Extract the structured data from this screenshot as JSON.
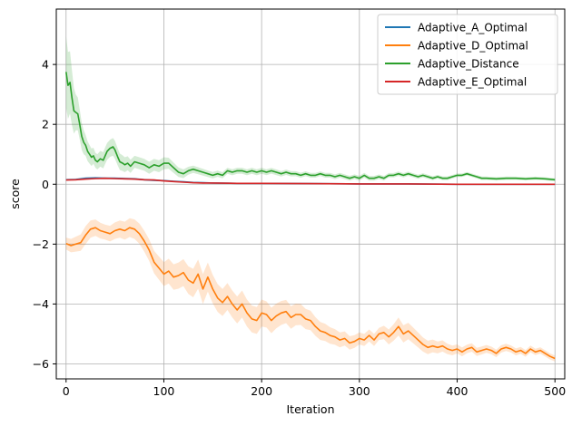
{
  "chart_data": {
    "type": "line",
    "xlabel": "Iteration",
    "ylabel": "score",
    "xlim": [
      -10,
      510
    ],
    "ylim": [
      -6.5,
      5.85
    ],
    "xticks": [
      0,
      100,
      200,
      300,
      400,
      500
    ],
    "yticks": [
      -6,
      -4,
      -2,
      0,
      2,
      4
    ],
    "grid": true,
    "legend_position": "top-right",
    "shaded_band": "variance band around each series mean",
    "series": [
      {
        "name": "Adaptive_A_Optimal",
        "color": "#1f77b4",
        "points": [
          [
            0,
            0.15
          ],
          [
            10,
            0.16
          ],
          [
            20,
            0.2
          ],
          [
            30,
            0.21
          ],
          [
            40,
            0.2
          ],
          [
            50,
            0.2
          ],
          [
            60,
            0.19
          ],
          [
            70,
            0.18
          ],
          [
            80,
            0.15
          ],
          [
            90,
            0.13
          ],
          [
            100,
            0.12
          ],
          [
            110,
            0.1
          ],
          [
            120,
            0.08
          ],
          [
            130,
            0.06
          ],
          [
            140,
            0.05
          ],
          [
            150,
            0.04
          ],
          [
            175,
            0.03
          ],
          [
            200,
            0.03
          ],
          [
            250,
            0.02
          ],
          [
            300,
            0.01
          ],
          [
            350,
            0.01
          ],
          [
            400,
            0.0
          ],
          [
            450,
            0.0
          ],
          [
            500,
            0.0
          ]
        ],
        "band": [
          [
            0,
            0.03
          ],
          [
            20,
            0.04
          ],
          [
            60,
            0.04
          ],
          [
            100,
            0.03
          ],
          [
            150,
            0.02
          ],
          [
            200,
            0.02
          ],
          [
            300,
            0.01
          ],
          [
            500,
            0.01
          ]
        ]
      },
      {
        "name": "Adaptive_D_Optimal",
        "color": "#ff7f0e",
        "points": [
          [
            0,
            -1.98
          ],
          [
            5,
            -2.05
          ],
          [
            10,
            -2.0
          ],
          [
            15,
            -1.95
          ],
          [
            20,
            -1.7
          ],
          [
            25,
            -1.5
          ],
          [
            30,
            -1.45
          ],
          [
            35,
            -1.55
          ],
          [
            40,
            -1.6
          ],
          [
            45,
            -1.65
          ],
          [
            50,
            -1.55
          ],
          [
            55,
            -1.5
          ],
          [
            60,
            -1.55
          ],
          [
            65,
            -1.45
          ],
          [
            70,
            -1.5
          ],
          [
            75,
            -1.65
          ],
          [
            80,
            -1.9
          ],
          [
            85,
            -2.2
          ],
          [
            90,
            -2.6
          ],
          [
            95,
            -2.8
          ],
          [
            100,
            -3.0
          ],
          [
            105,
            -2.9
          ],
          [
            110,
            -3.1
          ],
          [
            115,
            -3.05
          ],
          [
            120,
            -2.95
          ],
          [
            125,
            -3.2
          ],
          [
            130,
            -3.3
          ],
          [
            135,
            -3.0
          ],
          [
            140,
            -3.5
          ],
          [
            145,
            -3.1
          ],
          [
            150,
            -3.5
          ],
          [
            155,
            -3.8
          ],
          [
            160,
            -3.95
          ],
          [
            165,
            -3.75
          ],
          [
            170,
            -4.0
          ],
          [
            175,
            -4.2
          ],
          [
            180,
            -4.0
          ],
          [
            185,
            -4.3
          ],
          [
            190,
            -4.5
          ],
          [
            195,
            -4.55
          ],
          [
            200,
            -4.3
          ],
          [
            205,
            -4.35
          ],
          [
            210,
            -4.55
          ],
          [
            215,
            -4.4
          ],
          [
            220,
            -4.3
          ],
          [
            225,
            -4.25
          ],
          [
            230,
            -4.45
          ],
          [
            235,
            -4.35
          ],
          [
            240,
            -4.35
          ],
          [
            245,
            -4.5
          ],
          [
            250,
            -4.55
          ],
          [
            255,
            -4.75
          ],
          [
            260,
            -4.9
          ],
          [
            265,
            -4.95
          ],
          [
            270,
            -5.05
          ],
          [
            275,
            -5.1
          ],
          [
            280,
            -5.2
          ],
          [
            285,
            -5.15
          ],
          [
            290,
            -5.3
          ],
          [
            295,
            -5.25
          ],
          [
            300,
            -5.15
          ],
          [
            305,
            -5.2
          ],
          [
            310,
            -5.05
          ],
          [
            315,
            -5.2
          ],
          [
            320,
            -5.0
          ],
          [
            325,
            -4.95
          ],
          [
            330,
            -5.1
          ],
          [
            335,
            -4.95
          ],
          [
            340,
            -4.75
          ],
          [
            345,
            -5.0
          ],
          [
            350,
            -4.9
          ],
          [
            355,
            -5.05
          ],
          [
            360,
            -5.2
          ],
          [
            365,
            -5.35
          ],
          [
            370,
            -5.45
          ],
          [
            375,
            -5.4
          ],
          [
            380,
            -5.45
          ],
          [
            385,
            -5.4
          ],
          [
            390,
            -5.5
          ],
          [
            395,
            -5.55
          ],
          [
            400,
            -5.5
          ],
          [
            405,
            -5.6
          ],
          [
            410,
            -5.5
          ],
          [
            415,
            -5.45
          ],
          [
            420,
            -5.6
          ],
          [
            425,
            -5.55
          ],
          [
            430,
            -5.5
          ],
          [
            435,
            -5.55
          ],
          [
            440,
            -5.65
          ],
          [
            445,
            -5.5
          ],
          [
            450,
            -5.45
          ],
          [
            455,
            -5.5
          ],
          [
            460,
            -5.6
          ],
          [
            465,
            -5.55
          ],
          [
            470,
            -5.65
          ],
          [
            475,
            -5.5
          ],
          [
            480,
            -5.6
          ],
          [
            485,
            -5.55
          ],
          [
            490,
            -5.65
          ],
          [
            495,
            -5.75
          ],
          [
            500,
            -5.82
          ]
        ],
        "band": [
          [
            0,
            0.2
          ],
          [
            20,
            0.3
          ],
          [
            40,
            0.25
          ],
          [
            60,
            0.3
          ],
          [
            80,
            0.35
          ],
          [
            100,
            0.4
          ],
          [
            120,
            0.45
          ],
          [
            140,
            0.5
          ],
          [
            160,
            0.45
          ],
          [
            180,
            0.45
          ],
          [
            200,
            0.45
          ],
          [
            220,
            0.4
          ],
          [
            240,
            0.35
          ],
          [
            260,
            0.3
          ],
          [
            280,
            0.25
          ],
          [
            300,
            0.2
          ],
          [
            320,
            0.2
          ],
          [
            340,
            0.3
          ],
          [
            360,
            0.25
          ],
          [
            380,
            0.2
          ],
          [
            400,
            0.15
          ],
          [
            450,
            0.12
          ],
          [
            500,
            0.1
          ]
        ]
      },
      {
        "name": "Adaptive_Distance",
        "color": "#2ca02c",
        "points": [
          [
            0,
            3.75
          ],
          [
            2,
            3.3
          ],
          [
            4,
            3.4
          ],
          [
            6,
            2.9
          ],
          [
            8,
            2.45
          ],
          [
            10,
            2.4
          ],
          [
            12,
            2.35
          ],
          [
            14,
            2.0
          ],
          [
            16,
            1.6
          ],
          [
            18,
            1.4
          ],
          [
            20,
            1.3
          ],
          [
            22,
            1.1
          ],
          [
            24,
            1.0
          ],
          [
            26,
            0.9
          ],
          [
            28,
            0.95
          ],
          [
            30,
            0.8
          ],
          [
            32,
            0.75
          ],
          [
            35,
            0.85
          ],
          [
            38,
            0.8
          ],
          [
            40,
            0.95
          ],
          [
            42,
            1.1
          ],
          [
            45,
            1.2
          ],
          [
            48,
            1.25
          ],
          [
            50,
            1.15
          ],
          [
            53,
            0.9
          ],
          [
            55,
            0.75
          ],
          [
            58,
            0.7
          ],
          [
            60,
            0.65
          ],
          [
            63,
            0.7
          ],
          [
            66,
            0.6
          ],
          [
            70,
            0.75
          ],
          [
            75,
            0.7
          ],
          [
            80,
            0.65
          ],
          [
            85,
            0.55
          ],
          [
            90,
            0.65
          ],
          [
            95,
            0.6
          ],
          [
            100,
            0.7
          ],
          [
            105,
            0.7
          ],
          [
            110,
            0.55
          ],
          [
            115,
            0.4
          ],
          [
            120,
            0.35
          ],
          [
            125,
            0.45
          ],
          [
            130,
            0.5
          ],
          [
            135,
            0.45
          ],
          [
            140,
            0.4
          ],
          [
            145,
            0.35
          ],
          [
            150,
            0.3
          ],
          [
            155,
            0.35
          ],
          [
            160,
            0.3
          ],
          [
            165,
            0.45
          ],
          [
            170,
            0.4
          ],
          [
            175,
            0.45
          ],
          [
            180,
            0.45
          ],
          [
            185,
            0.4
          ],
          [
            190,
            0.45
          ],
          [
            195,
            0.4
          ],
          [
            200,
            0.45
          ],
          [
            205,
            0.4
          ],
          [
            210,
            0.45
          ],
          [
            215,
            0.4
          ],
          [
            220,
            0.35
          ],
          [
            225,
            0.4
          ],
          [
            230,
            0.35
          ],
          [
            235,
            0.35
          ],
          [
            240,
            0.3
          ],
          [
            245,
            0.35
          ],
          [
            250,
            0.3
          ],
          [
            255,
            0.3
          ],
          [
            260,
            0.35
          ],
          [
            265,
            0.3
          ],
          [
            270,
            0.3
          ],
          [
            275,
            0.25
          ],
          [
            280,
            0.3
          ],
          [
            285,
            0.25
          ],
          [
            290,
            0.2
          ],
          [
            295,
            0.25
          ],
          [
            300,
            0.2
          ],
          [
            305,
            0.3
          ],
          [
            310,
            0.2
          ],
          [
            315,
            0.2
          ],
          [
            320,
            0.25
          ],
          [
            325,
            0.2
          ],
          [
            330,
            0.3
          ],
          [
            335,
            0.3
          ],
          [
            340,
            0.35
          ],
          [
            345,
            0.3
          ],
          [
            350,
            0.35
          ],
          [
            355,
            0.3
          ],
          [
            360,
            0.25
          ],
          [
            365,
            0.3
          ],
          [
            370,
            0.25
          ],
          [
            375,
            0.2
          ],
          [
            380,
            0.25
          ],
          [
            385,
            0.2
          ],
          [
            390,
            0.2
          ],
          [
            395,
            0.25
          ],
          [
            400,
            0.3
          ],
          [
            405,
            0.3
          ],
          [
            410,
            0.35
          ],
          [
            415,
            0.3
          ],
          [
            420,
            0.25
          ],
          [
            425,
            0.2
          ],
          [
            430,
            0.2
          ],
          [
            440,
            0.18
          ],
          [
            450,
            0.2
          ],
          [
            460,
            0.2
          ],
          [
            470,
            0.18
          ],
          [
            480,
            0.2
          ],
          [
            490,
            0.18
          ],
          [
            500,
            0.15
          ]
        ],
        "band": [
          [
            0,
            1.2
          ],
          [
            5,
            1.0
          ],
          [
            10,
            0.6
          ],
          [
            20,
            0.35
          ],
          [
            30,
            0.25
          ],
          [
            50,
            0.3
          ],
          [
            70,
            0.2
          ],
          [
            100,
            0.2
          ],
          [
            130,
            0.12
          ],
          [
            160,
            0.1
          ],
          [
            200,
            0.1
          ],
          [
            250,
            0.08
          ],
          [
            300,
            0.08
          ],
          [
            400,
            0.06
          ],
          [
            500,
            0.05
          ]
        ]
      },
      {
        "name": "Adaptive_E_Optimal",
        "color": "#d62728",
        "points": [
          [
            0,
            0.14
          ],
          [
            10,
            0.15
          ],
          [
            20,
            0.17
          ],
          [
            30,
            0.19
          ],
          [
            40,
            0.2
          ],
          [
            50,
            0.19
          ],
          [
            60,
            0.18
          ],
          [
            70,
            0.17
          ],
          [
            80,
            0.15
          ],
          [
            90,
            0.14
          ],
          [
            100,
            0.11
          ],
          [
            110,
            0.09
          ],
          [
            120,
            0.07
          ],
          [
            130,
            0.05
          ],
          [
            140,
            0.04
          ],
          [
            150,
            0.04
          ],
          [
            175,
            0.03
          ],
          [
            200,
            0.03
          ],
          [
            250,
            0.02
          ],
          [
            300,
            0.01
          ],
          [
            350,
            0.01
          ],
          [
            400,
            0.0
          ],
          [
            450,
            0.0
          ],
          [
            500,
            0.0
          ]
        ],
        "band": [
          [
            0,
            0.03
          ],
          [
            20,
            0.03
          ],
          [
            60,
            0.03
          ],
          [
            100,
            0.03
          ],
          [
            150,
            0.02
          ],
          [
            200,
            0.02
          ],
          [
            300,
            0.01
          ],
          [
            500,
            0.01
          ]
        ]
      }
    ]
  }
}
